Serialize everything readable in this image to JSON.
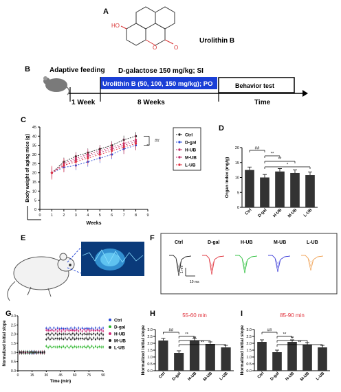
{
  "panel_letters": {
    "A": "A",
    "B": "B",
    "C": "C",
    "D": "D",
    "E": "E",
    "F": "F",
    "G": "G",
    "H": "H",
    "I": "I"
  },
  "panel_A": {
    "molecule_name": "Urolithin B",
    "ho_label": "HO",
    "o_ring": "O",
    "o_carbonyl": "O"
  },
  "panel_B": {
    "adaptive_feeding": "Adaptive feeding",
    "dgal_label": "D-galactose 150 mg/kg; SI",
    "uro_bar_label": "Urolithin B (50, 100, 150 mg/kg); PO",
    "behavior_label": "Behavior test",
    "week1": "1 Week",
    "week8": "8 Weeks",
    "time_label": "Time",
    "bar_color": "#1a3fd6"
  },
  "chart_data": [
    {
      "panel": "C",
      "type": "line",
      "ylabel": "Body weight of aging mice (g)",
      "xlabel": "Weeks",
      "x": [
        1,
        2,
        3,
        4,
        5,
        6,
        7,
        8
      ],
      "xticks": [
        "0",
        "1",
        "2",
        "3",
        "4",
        "5",
        "6",
        "7",
        "8",
        "9"
      ],
      "xlim": [
        0,
        9
      ],
      "ylim": [
        0,
        45
      ],
      "yticks": [
        "0",
        "5",
        "10",
        "15",
        "20",
        "25",
        "30",
        "35",
        "40",
        "45"
      ],
      "series": [
        {
          "name": "Ctrl",
          "color": "#222222",
          "values": [
            20,
            26,
            29,
            31,
            33,
            35,
            38,
            40
          ]
        },
        {
          "name": "D-gal",
          "color": "#2a4bd8",
          "values": [
            20,
            23,
            24,
            26,
            28,
            30,
            33,
            35
          ]
        },
        {
          "name": "H-UB",
          "color": "#c0306a",
          "values": [
            20,
            25,
            28,
            30,
            32,
            34,
            36,
            38
          ]
        },
        {
          "name": "M-UB",
          "color": "#c0306a",
          "values": [
            20,
            24,
            27,
            29,
            31,
            33,
            35,
            37
          ]
        },
        {
          "name": "L-UB",
          "color": "#e03040",
          "values": [
            20,
            24,
            26,
            28,
            30,
            32,
            34,
            36
          ]
        }
      ],
      "annotations": [
        "##",
        "**"
      ]
    },
    {
      "panel": "D",
      "type": "bar",
      "ylabel": "Organ index (mg/g)",
      "categories": [
        "Ctrl",
        "D-gal",
        "H-UB",
        "M-UB",
        "L-UB"
      ],
      "values": [
        12.5,
        10,
        12,
        11.5,
        10.8
      ],
      "ylim": [
        0,
        20
      ],
      "yticks": [
        "0",
        "5",
        "10",
        "15",
        "20"
      ],
      "annotations": [
        "##",
        "**",
        "**",
        "*"
      ]
    },
    {
      "panel": "G",
      "type": "scatter",
      "ylabel": "Normalized initial slope",
      "xlabel": "Time (min)",
      "xticks": [
        "0",
        "15",
        "30",
        "45",
        "60",
        "75",
        "90"
      ],
      "xlim": [
        0,
        90
      ],
      "ylim": [
        0,
        3.0
      ],
      "yticks": [
        "0.0",
        "0.5",
        "1.0",
        "1.5",
        "2.0",
        "2.5",
        "3.0"
      ],
      "series": [
        {
          "name": "Ctrl",
          "color": "#2a4bd8",
          "baseline": 1.0,
          "post": 2.3
        },
        {
          "name": "D-gal",
          "color": "#2bb52b",
          "baseline": 1.0,
          "post": 1.3
        },
        {
          "name": "H-UB",
          "color": "#d42a7a",
          "baseline": 1.0,
          "post": 2.2
        },
        {
          "name": "M-UB",
          "color": "#222222",
          "baseline": 1.0,
          "post": 2.0
        },
        {
          "name": "L-UB",
          "color": "#222222",
          "baseline": 1.0,
          "post": 1.75
        }
      ]
    },
    {
      "panel": "H",
      "type": "bar",
      "title": "55-60 min",
      "ylabel": "Normalized initial slope",
      "categories": [
        "Ctrl",
        "D-gal",
        "H-UB",
        "M-UB",
        "L-UB"
      ],
      "values": [
        2.2,
        1.3,
        2.2,
        1.95,
        1.7
      ],
      "ylim": [
        0,
        3.0
      ],
      "yticks": [
        "0.0",
        "0.5",
        "1.0",
        "1.5",
        "2.0",
        "2.5",
        "3.0"
      ],
      "annotations": [
        "##",
        "**",
        "**",
        "**"
      ]
    },
    {
      "panel": "I",
      "type": "bar",
      "title": "85-90 min",
      "ylabel": "Normalized initial slope",
      "categories": [
        "Ctrl",
        "D-gal",
        "H-UB",
        "M-UB",
        "L-UB"
      ],
      "values": [
        2.1,
        1.35,
        2.1,
        1.9,
        1.7
      ],
      "ylim": [
        0,
        3.0
      ],
      "yticks": [
        "0.0",
        "0.5",
        "1.0",
        "1.5",
        "2.0",
        "2.5",
        "3.0"
      ],
      "annotations": [
        "##",
        "**",
        "**",
        "**"
      ]
    }
  ],
  "panel_F": {
    "traces": [
      {
        "name": "Ctrl",
        "color": "#222222"
      },
      {
        "name": "D-gal",
        "color": "#e0303a"
      },
      {
        "name": "H-UB",
        "color": "#2bbf3b"
      },
      {
        "name": "M-UB",
        "color": "#3a3ad8"
      },
      {
        "name": "L-UB",
        "color": "#f0a050"
      }
    ],
    "scale_y": "1 mV",
    "scale_x": "10 ms"
  },
  "title_color": "#e0303a"
}
